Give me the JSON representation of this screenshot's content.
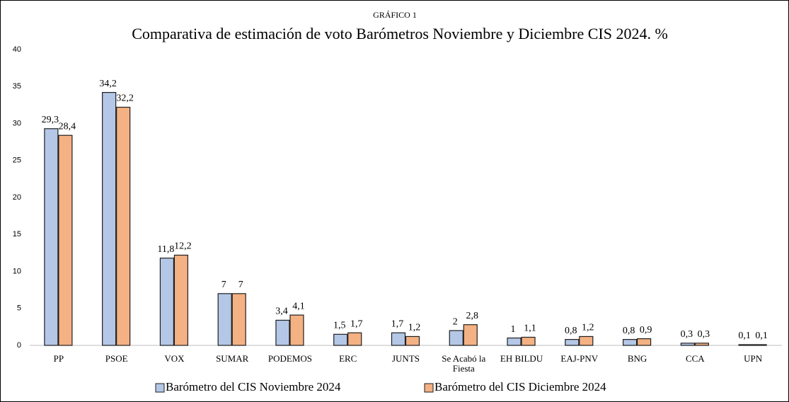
{
  "chart_data": {
    "type": "bar",
    "label": "GRÁFICO 1",
    "title": "Comparativa de estimación de voto Barómetros Noviembre y Diciembre CIS 2024. %",
    "categories": [
      "PP",
      "PSOE",
      "VOX",
      "SUMAR",
      "PODEMOS",
      "ERC",
      "JUNTS",
      "Se Acabó la Fiesta",
      "EH BILDU",
      "EAJ-PNV",
      "BNG",
      "CCA",
      "UPN"
    ],
    "series": [
      {
        "name": "Barómetro del CIS Noviembre 2024",
        "color": "#b4c7e7",
        "values": [
          29.3,
          34.2,
          11.8,
          7,
          3.4,
          1.5,
          1.7,
          2,
          1,
          0.8,
          0.8,
          0.3,
          0.1
        ],
        "value_labels": [
          "29,3",
          "34,2",
          "11,8",
          "7",
          "3,4",
          "1,5",
          "1,7",
          "2",
          "1",
          "0,8",
          "0,8",
          "0,3",
          "0,1"
        ]
      },
      {
        "name": "Barómetro del CIS Diciembre 2024",
        "color": "#f4b183",
        "values": [
          28.4,
          32.2,
          12.2,
          7,
          4.1,
          1.7,
          1.2,
          2.8,
          1.1,
          1.2,
          0.9,
          0.3,
          0.1
        ],
        "value_labels": [
          "28,4",
          "32,2",
          "12,2",
          "7",
          "4,1",
          "1,7",
          "1,2",
          "2,8",
          "1,1",
          "1,2",
          "0,9",
          "0,3",
          "0,1"
        ]
      }
    ],
    "ylim": [
      0,
      40
    ],
    "yticks": [
      0,
      5,
      10,
      15,
      20,
      25,
      30,
      35,
      40
    ],
    "grid": false,
    "legend": "bottom"
  }
}
